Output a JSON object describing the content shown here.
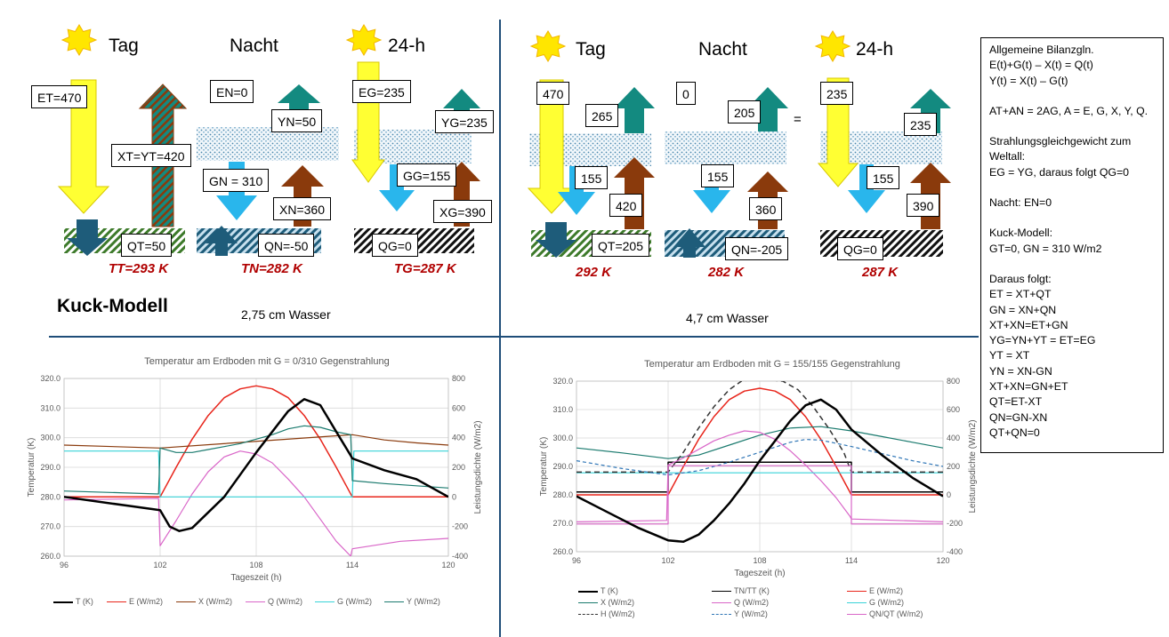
{
  "left": {
    "headers": {
      "tag": "Tag",
      "nacht": "Nacht",
      "h24": "24-h"
    },
    "boxes": {
      "et": "ET=470",
      "xt": "XT=YT=420",
      "qt": "QT=50",
      "en": "EN=0",
      "yn": "YN=50",
      "gn": "GN = 310",
      "xn": "XN=360",
      "qn": "QN=-50",
      "eg": "EG=235",
      "yg": "YG=235",
      "gg": "GG=155",
      "xg": "XG=390",
      "qg": "QG=0"
    },
    "temps": {
      "tt": "TT=293 K",
      "tn": "TN=282 K",
      "tg": "TG=287 K"
    },
    "title": "Kuck-Modell",
    "water": "2,75 cm Wasser"
  },
  "right": {
    "headers": {
      "tag": "Tag",
      "nacht": "Nacht",
      "h24": "24-h"
    },
    "boxes": {
      "et": "470",
      "yt": "265",
      "gt": "155",
      "xt": "420",
      "qt": "QT=205",
      "en": "0",
      "yn": "205",
      "gn": "155",
      "xn": "360",
      "qn": "QN=-205",
      "eg": "235",
      "yg": "235",
      "gg": "155",
      "xg": "390",
      "qg": "QG=0"
    },
    "eq": "=",
    "temps": {
      "tt": "292 K",
      "tn": "282 K",
      "tg": "287 K"
    },
    "water": "4,7 cm Wasser"
  },
  "sidebox": {
    "lines": [
      "Allgemeine Bilanzgln.",
      "E(t)+G(t) – X(t) = Q(t)",
      "Y(t) = X(t) – G(t)",
      "",
      "AT+AN = 2AG, A = E, G, X, Y, Q.",
      "",
      "Strahlungsgleichgewicht zum",
      "Weltall:",
      "EG = YG, daraus folgt QG=0",
      "",
      "Nacht: EN=0",
      "",
      "Kuck-Modell:",
      "GT=0, GN = 310 W/m2",
      "",
      "Daraus folgt:",
      "ET = XT+QT",
      "GN = XN+QN",
      "XT+XN=ET+GN",
      "YG=YN+YT = ET=EG",
      "YT = XT",
      "YN = XN-GN",
      "XT+XN=GN+ET",
      "QT=ET-XT",
      "QN=GN-XN",
      "QT+QN=0"
    ]
  },
  "colors": {
    "sun": "#ffe600",
    "yellow_arrow": "#ffff33",
    "teal": "#138a80",
    "brown": "#8a3a0c",
    "blue": "#29b6ec",
    "darkblue": "#1e5c7a",
    "temp_red": "#b00000"
  },
  "chart_data": [
    {
      "type": "line",
      "title": "Temperatur am Erdboden mit G = 0/310 Gegenstrahlung",
      "xlabel": "Tageszeit (h)",
      "ylabel": "Temperatur (K)",
      "y2label": "Leistungsdichte (W/m2)",
      "xlim": [
        96,
        120
      ],
      "ylim": [
        260,
        320
      ],
      "y2lim": [
        -400,
        800
      ],
      "xticks": [
        "96",
        "102",
        "108",
        "114",
        "120"
      ],
      "yticks": [
        "260.0",
        "270.0",
        "280.0",
        "290.0",
        "300.0",
        "310.0",
        "320.0"
      ],
      "y2ticks": [
        "-400",
        "-200",
        "0",
        "200",
        "400",
        "600",
        "800"
      ],
      "legend_position": "bottom",
      "series": [
        {
          "name": "T (K)",
          "axis": "left",
          "color": "#000000",
          "width": 2.5,
          "x": [
            96,
            100,
            102,
            102.6,
            103.2,
            104,
            106,
            108,
            110,
            111,
            112,
            113,
            113.9,
            114,
            116,
            118,
            120
          ],
          "y": [
            280,
            277,
            275.5,
            270,
            268.5,
            269.5,
            280,
            295,
            309,
            313,
            311,
            302,
            294,
            293,
            289,
            286,
            280
          ]
        },
        {
          "name": "E (W/m2)",
          "axis": "right",
          "color": "#e8251b",
          "width": 1.5,
          "x": [
            96,
            102,
            103,
            104,
            105,
            106,
            107,
            108,
            109,
            110,
            111,
            112,
            113,
            114,
            120
          ],
          "y": [
            0,
            0,
            200,
            390,
            550,
            670,
            730,
            750,
            730,
            670,
            550,
            390,
            200,
            0,
            0
          ]
        },
        {
          "name": "X (W/m2)",
          "axis": "right",
          "color": "#8a3a0c",
          "width": 1.2,
          "x": [
            96,
            102,
            114,
            116,
            118,
            120
          ],
          "y": [
            350,
            330,
            420,
            385,
            365,
            350
          ]
        },
        {
          "name": "Q (W/m2)",
          "axis": "right",
          "color": "#d966c8",
          "width": 1.2,
          "x": [
            96,
            101.9,
            102,
            103,
            104,
            105,
            106,
            107,
            108,
            109,
            110,
            111,
            112,
            113,
            113.9,
            114,
            117,
            120
          ],
          "y": [
            -20,
            -10,
            -330,
            -160,
            20,
            170,
            270,
            310,
            290,
            230,
            120,
            0,
            -150,
            -300,
            -400,
            -350,
            -300,
            -280
          ]
        },
        {
          "name": "G (W/m2)",
          "axis": "right",
          "color": "#39d3d8",
          "width": 1.2,
          "x": [
            96,
            101.9,
            102,
            114,
            114.1,
            120
          ],
          "y": [
            310,
            310,
            0,
            0,
            310,
            310
          ]
        },
        {
          "name": "Y (W/m2)",
          "axis": "right",
          "color": "#1a7a6e",
          "width": 1.2,
          "x": [
            96,
            101.9,
            102,
            103,
            104,
            105,
            106,
            107,
            108,
            109,
            110,
            111,
            112,
            113,
            113.9,
            114,
            116,
            120
          ],
          "y": [
            40,
            20,
            330,
            300,
            300,
            320,
            340,
            360,
            390,
            420,
            460,
            480,
            470,
            440,
            420,
            110,
            90,
            60
          ]
        }
      ]
    },
    {
      "type": "line",
      "title": "Temperatur am Erdboden mit G = 155/155 Gegenstrahlung",
      "xlabel": "Tageszeit (h)",
      "ylabel": "Temperatur (K)",
      "y2label": "Leistungsdichte (W/m2)",
      "xlim": [
        96,
        120
      ],
      "ylim": [
        260,
        320
      ],
      "y2lim": [
        -400,
        800
      ],
      "xticks": [
        "96",
        "102",
        "108",
        "114",
        "120"
      ],
      "yticks": [
        "260.0",
        "270.0",
        "280.0",
        "290.0",
        "300.0",
        "310.0",
        "320.0"
      ],
      "y2ticks": [
        "-400",
        "-200",
        "0",
        "200",
        "400",
        "600",
        "800"
      ],
      "legend_position": "bottom",
      "series": [
        {
          "name": "T (K)",
          "axis": "left",
          "color": "#000000",
          "width": 2.5,
          "x": [
            96,
            98,
            100,
            102,
            103,
            104,
            105,
            106,
            107,
            108,
            109,
            110,
            111,
            112,
            113,
            114,
            116,
            118,
            120
          ],
          "y": [
            279.5,
            274,
            268.5,
            264,
            263.5,
            266,
            271,
            277,
            284,
            292,
            299,
            306,
            311.5,
            313.5,
            310,
            303,
            294,
            286,
            279.5
          ]
        },
        {
          "name": "TN/TT (K)",
          "axis": "left",
          "color": "#000000",
          "width": 1.5,
          "x": [
            96,
            102,
            102,
            114,
            114,
            120
          ],
          "y": [
            281,
            281,
            291.5,
            291.5,
            281,
            281
          ]
        },
        {
          "name": "E (W/m2)",
          "axis": "right",
          "color": "#e8251b",
          "width": 1.5,
          "x": [
            96,
            102,
            103,
            104,
            105,
            106,
            107,
            108,
            109,
            110,
            111,
            112,
            113,
            114,
            120
          ],
          "y": [
            0,
            0,
            200,
            390,
            550,
            670,
            730,
            750,
            730,
            670,
            550,
            390,
            200,
            0,
            0
          ]
        },
        {
          "name": "X (W/m2)",
          "axis": "right",
          "color": "#1a7a6e",
          "width": 1.2,
          "x": [
            96,
            99,
            102,
            104,
            106,
            108,
            110,
            112,
            114,
            116,
            118,
            120
          ],
          "y": [
            330,
            295,
            255,
            280,
            350,
            420,
            470,
            480,
            450,
            410,
            370,
            330
          ]
        },
        {
          "name": "Q (W/m2)",
          "axis": "right",
          "color": "#d966c8",
          "width": 1.2,
          "x": [
            96,
            101.9,
            102,
            103,
            104,
            105,
            106,
            107,
            108,
            109,
            110,
            111,
            112,
            113,
            113.9,
            114,
            117,
            120
          ],
          "y": [
            -190,
            -180,
            210,
            260,
            320,
            380,
            420,
            450,
            440,
            390,
            310,
            210,
            100,
            -20,
            -150,
            -170,
            -180,
            -190
          ]
        },
        {
          "name": "G (W/m2)",
          "axis": "right",
          "color": "#39d3d8",
          "width": 1.2,
          "x": [
            96,
            120
          ],
          "y": [
            155,
            155
          ]
        },
        {
          "name": "H (W/m2)",
          "axis": "right",
          "color": "#333333",
          "width": 1.5,
          "dash": "6,4",
          "x": [
            96,
            102,
            103,
            104,
            105,
            106,
            106.8,
            107.5,
            108.5,
            109.5,
            110.5,
            111.5,
            112.5,
            113.5,
            114,
            120
          ],
          "y": [
            160,
            160,
            300,
            470,
            620,
            740,
            800,
            810,
            810,
            800,
            740,
            620,
            470,
            300,
            160,
            160
          ]
        },
        {
          "name": "Y (W/m2)",
          "axis": "right",
          "color": "#2e75b6",
          "width": 1.2,
          "dash": "4,3",
          "x": [
            96,
            99,
            102,
            104,
            106,
            108,
            110,
            111,
            112,
            114,
            116,
            118,
            120
          ],
          "y": [
            240,
            185,
            140,
            170,
            230,
            300,
            370,
            390,
            385,
            340,
            290,
            240,
            200
          ]
        },
        {
          "name": "QN/QT (W/m2)",
          "axis": "right",
          "color": "#d966c8",
          "width": 1.2,
          "x": [
            96,
            102,
            102,
            114,
            114,
            120
          ],
          "y": [
            -205,
            -205,
            205,
            205,
            -205,
            -205
          ]
        }
      ]
    }
  ]
}
